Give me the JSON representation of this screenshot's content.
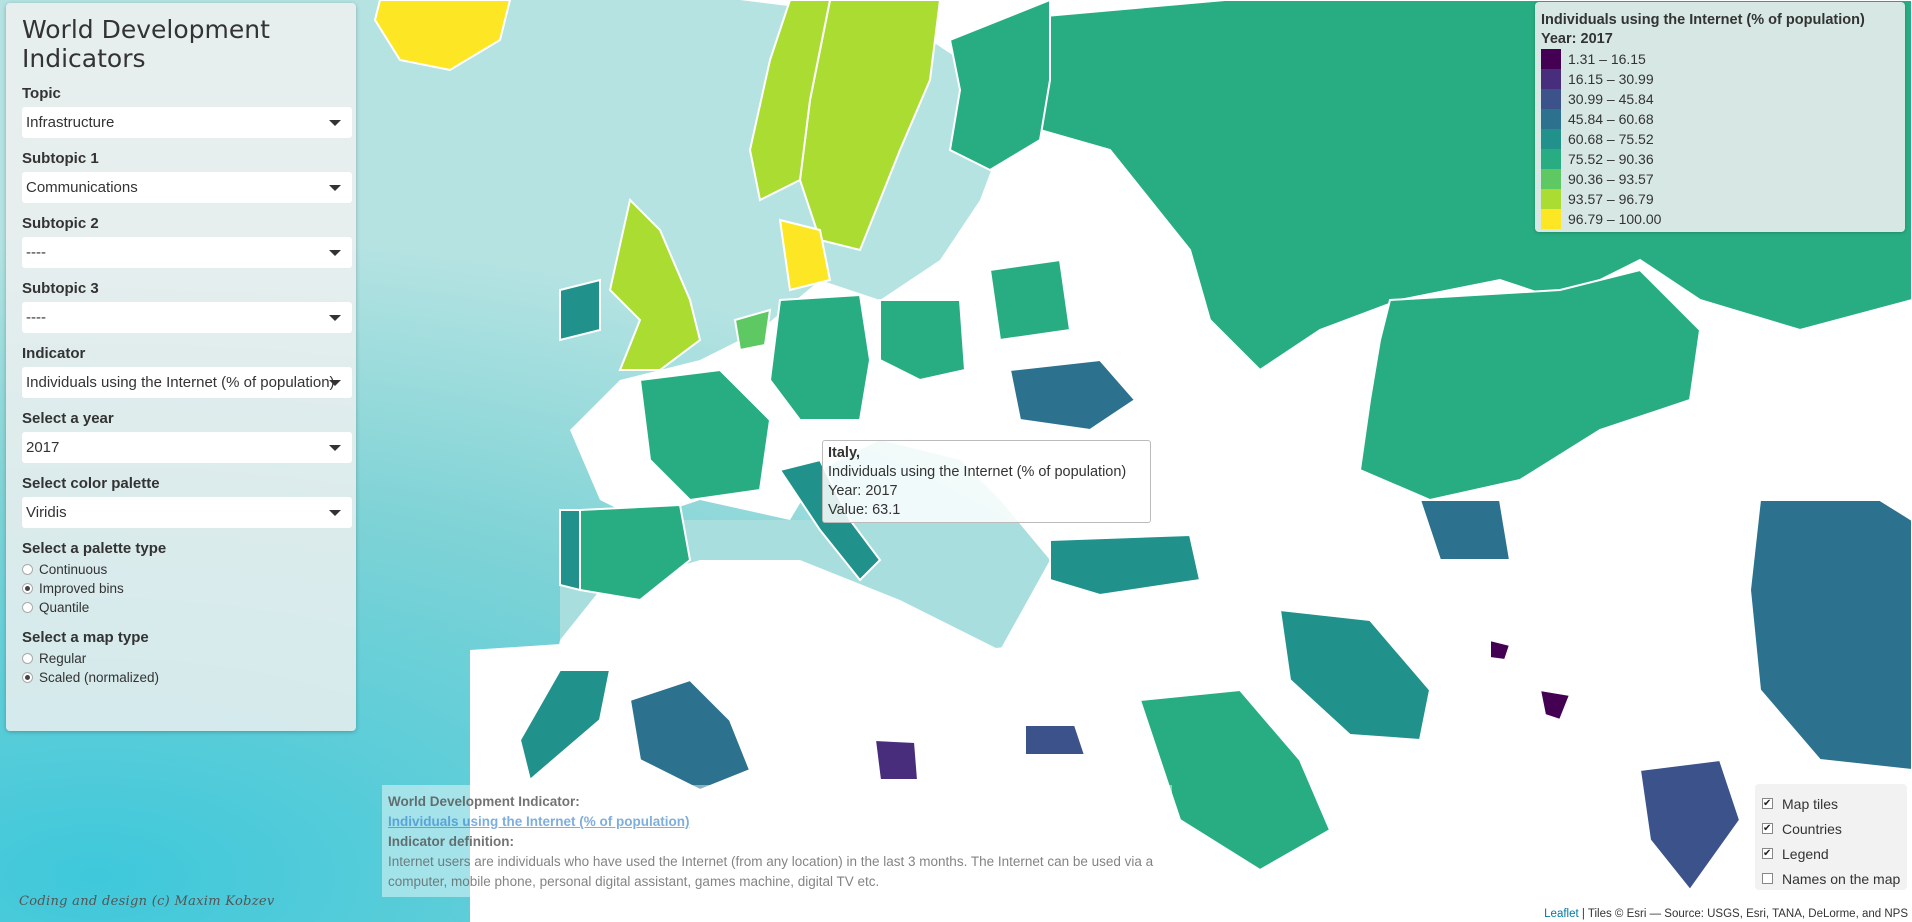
{
  "panel": {
    "title": "World Development Indicators",
    "topic": {
      "label": "Topic",
      "value": "Infrastructure"
    },
    "subtopic1": {
      "label": "Subtopic 1",
      "value": "Communications"
    },
    "subtopic2": {
      "label": "Subtopic 2",
      "value": "----"
    },
    "subtopic3": {
      "label": "Subtopic 3",
      "value": "----"
    },
    "indicator": {
      "label": "Indicator",
      "value": "Individuals using the Internet (% of population)"
    },
    "year": {
      "label": "Select a year",
      "value": "2017"
    },
    "palette": {
      "label": "Select color palette",
      "value": "Viridis"
    },
    "palette_type": {
      "label": "Select a palette type",
      "options": [
        "Continuous",
        "Improved bins",
        "Quantile"
      ],
      "selected": "Improved bins"
    },
    "map_type": {
      "label": "Select a map type",
      "options": [
        "Regular",
        "Scaled (normalized)"
      ],
      "selected": "Scaled (normalized)"
    }
  },
  "legend": {
    "title": "Individuals using the Internet (% of population)",
    "year": "Year: 2017",
    "bins": [
      {
        "label": "1.31 – 16.15",
        "color": "#440154"
      },
      {
        "label": "16.15 – 30.99",
        "color": "#472d7b"
      },
      {
        "label": "30.99 – 45.84",
        "color": "#3b528b"
      },
      {
        "label": "45.84 – 60.68",
        "color": "#2c728e"
      },
      {
        "label": "60.68 – 75.52",
        "color": "#21918c"
      },
      {
        "label": "75.52 – 90.36",
        "color": "#27ad81"
      },
      {
        "label": "90.36 – 93.57",
        "color": "#5ec962"
      },
      {
        "label": "93.57 – 96.79",
        "color": "#aadc32"
      },
      {
        "label": "96.79 – 100.00",
        "color": "#fde725"
      }
    ]
  },
  "tooltip": {
    "country": "Italy,",
    "indicator": "Individuals using the Internet (% of population)",
    "year": "Year: 2017",
    "value": "Value: 63.1"
  },
  "info": {
    "heading": "World Development Indicator:",
    "link": "Individuals using the Internet (% of population)",
    "definition_heading": "Indicator definition:",
    "definition": "Internet users are individuals who have used the Internet (from any location) in the last 3 months. The Internet can be used via a computer, mobile phone, personal digital assistant, games machine, digital TV etc."
  },
  "layers": [
    {
      "label": "Map tiles",
      "checked": true
    },
    {
      "label": "Countries",
      "checked": true
    },
    {
      "label": "Legend",
      "checked": true
    },
    {
      "label": "Names on the map",
      "checked": false
    }
  ],
  "signature": "Coding and design (c) Maxim Kobzev",
  "attribution": {
    "leaflet": "Leaflet",
    "tiles": "| Tiles © Esri — Source: USGS, Esri, TANA, DeLorme, and NPS"
  },
  "colors": {
    "sea": "#a8dede",
    "deep_sea": "#7fd3d6",
    "land": "#ffffff"
  }
}
